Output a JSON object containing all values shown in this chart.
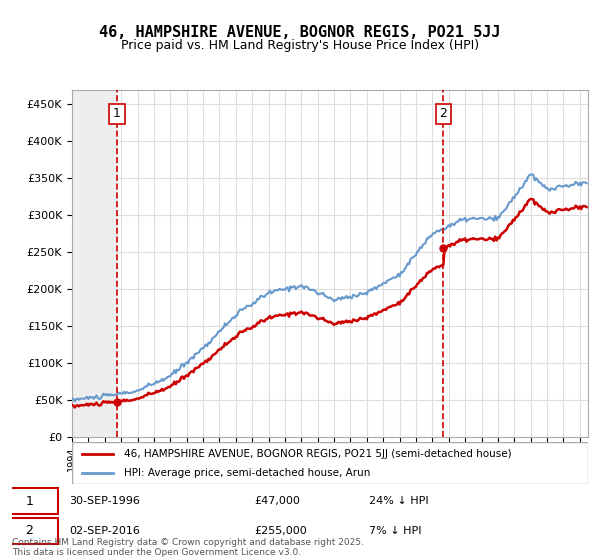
{
  "title": "46, HAMPSHIRE AVENUE, BOGNOR REGIS, PO21 5JJ",
  "subtitle": "Price paid vs. HM Land Registry's House Price Index (HPI)",
  "legend_line1": "46, HAMPSHIRE AVENUE, BOGNOR REGIS, PO21 5JJ (semi-detached house)",
  "legend_line2": "HPI: Average price, semi-detached house, Arun",
  "annotation1_label": "1",
  "annotation1_date": "30-SEP-1996",
  "annotation1_price": "£47,000",
  "annotation1_hpi": "24% ↓ HPI",
  "annotation2_label": "2",
  "annotation2_date": "02-SEP-2016",
  "annotation2_price": "£255,000",
  "annotation2_hpi": "7% ↓ HPI",
  "footer": "Contains HM Land Registry data © Crown copyright and database right 2025.\nThis data is licensed under the Open Government Licence v3.0.",
  "sale1_year": 1996.75,
  "sale1_price": 47000,
  "sale2_year": 2016.67,
  "sale2_price": 255000,
  "hpi_color": "#6699cc",
  "price_color": "#cc0000",
  "vline_color": "#cc0000",
  "ylim": [
    0,
    470000
  ],
  "xlim_start": 1994,
  "xlim_end": 2025.5,
  "background_color": "#ffffff",
  "grid_color": "#dddddd",
  "hatch_color": "#e8e8e8"
}
